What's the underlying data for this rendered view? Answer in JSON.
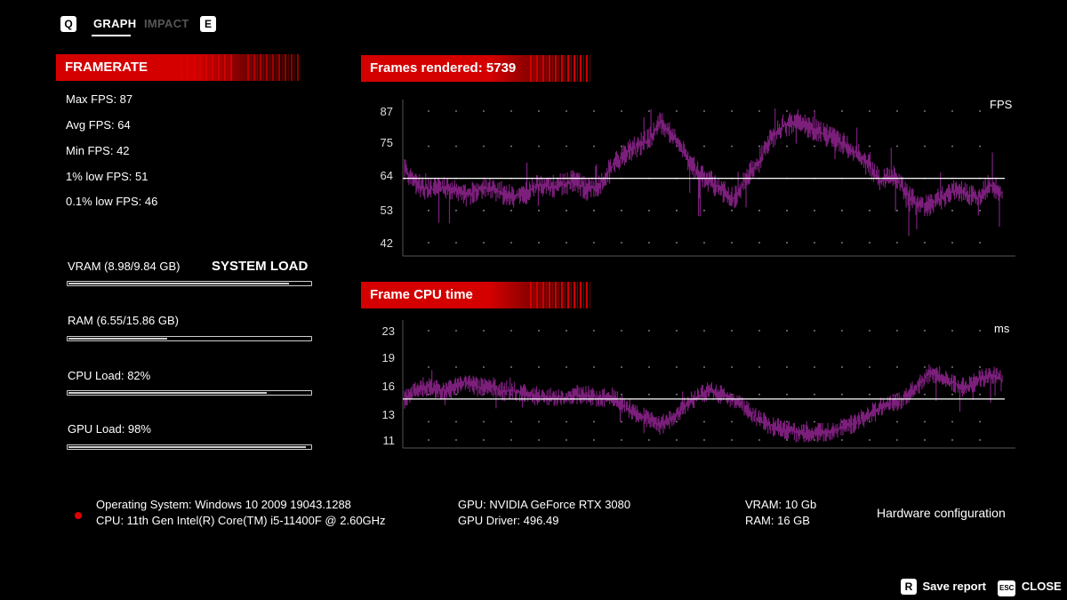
{
  "nav": {
    "left_key": "Q",
    "tabs": [
      {
        "label": "GRAPH",
        "active": true
      },
      {
        "label": "IMPACT",
        "active": false
      }
    ],
    "right_key": "E"
  },
  "framerate": {
    "title": "FRAMERATE",
    "stats": [
      "Max FPS: 87",
      "Avg FPS: 64",
      "Min FPS: 42",
      "1% low FPS: 51",
      "0.1% low FPS: 46"
    ]
  },
  "system_load": {
    "title": "SYSTEM LOAD",
    "bars": [
      {
        "label": "VRAM (8.98/9.84 GB)",
        "fraction": 0.913
      },
      {
        "label": "RAM (6.55/15.86 GB)",
        "fraction": 0.413
      },
      {
        "label": "CPU Load: 82%",
        "fraction": 0.82
      },
      {
        "label": "GPU Load: 98%",
        "fraction": 0.98
      }
    ]
  },
  "chart_data": [
    {
      "type": "line",
      "title": "Frames rendered: 5739",
      "ylabel": "FPS",
      "yticks": [
        87,
        75,
        64,
        53,
        42
      ],
      "ylim": [
        42,
        87
      ],
      "average_line": 64,
      "series_color": "#7b1f7b",
      "profile": [
        67,
        62,
        60,
        61,
        60,
        58,
        60,
        61,
        59,
        58,
        59,
        62,
        61,
        62,
        63,
        60,
        62,
        68,
        72,
        75,
        77,
        83,
        79,
        72,
        66,
        63,
        60,
        57,
        64,
        69,
        77,
        82,
        83,
        82,
        80,
        78,
        76,
        73,
        69,
        63,
        65,
        60,
        55,
        55,
        57,
        60,
        59,
        57,
        62,
        59
      ]
    },
    {
      "type": "line",
      "title": "Frame CPU time",
      "ylabel": "ms",
      "yticks": [
        23,
        19,
        16,
        13,
        11
      ],
      "ylim": [
        11,
        23
      ],
      "average_line": 15.5,
      "series_color": "#7b1f7b",
      "profile": [
        15.5,
        16.5,
        16.8,
        16.4,
        16.6,
        17.5,
        16.8,
        17.0,
        16.3,
        16.4,
        16.0,
        15.8,
        15.7,
        15.6,
        16.0,
        15.9,
        15.6,
        15.8,
        14.8,
        13.9,
        13.4,
        12.6,
        13.5,
        14.8,
        15.7,
        16.4,
        16.0,
        15.5,
        14.5,
        13.3,
        12.6,
        12.2,
        11.9,
        11.6,
        11.8,
        11.9,
        12.4,
        12.9,
        13.7,
        14.6,
        15.0,
        15.6,
        16.8,
        18.3,
        18.0,
        17.2,
        16.7,
        17.6,
        18.2,
        17.7
      ]
    }
  ],
  "hardware": {
    "os": "Operating System: Windows 10 2009 19043.1288",
    "cpu": "CPU: 11th Gen Intel(R) Core(TM) i5-11400F @ 2.60GHz",
    "gpu": "GPU: NVIDIA GeForce RTX 3080",
    "driver": "GPU Driver: 496.49",
    "vram": "VRAM: 10 Gb",
    "ram": "RAM: 16 GB",
    "config_label": "Hardware configuration",
    "status_color": "#e00000"
  },
  "footer": {
    "save_key": "R",
    "save_label": "Save report",
    "close_key": "ESC",
    "close_label": "CLOSE"
  }
}
